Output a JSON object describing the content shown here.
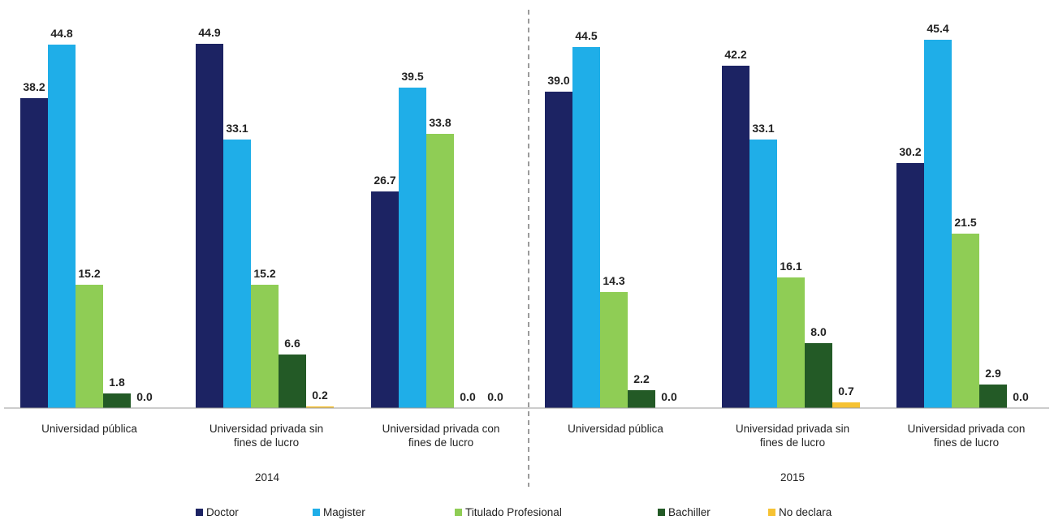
{
  "chart_data": {
    "type": "bar",
    "title": "",
    "xlabel": "",
    "ylabel": "",
    "ylim": [
      0,
      50
    ],
    "grid": false,
    "legend_position": "bottom",
    "groups": [
      {
        "year": "2014",
        "categories": [
          [
            "Universidad pública"
          ],
          [
            "Universidad privada sin",
            "fines de lucro"
          ],
          [
            "Universidad privada con",
            "fines de lucro"
          ]
        ]
      },
      {
        "year": "2015",
        "categories": [
          [
            "Universidad pública"
          ],
          [
            "Universidad privada sin",
            "fines de lucro"
          ],
          [
            "Universidad privada con",
            "fines de lucro"
          ]
        ]
      }
    ],
    "series": [
      {
        "name": "Doctor",
        "color": "#1c2363",
        "values": [
          38.2,
          44.9,
          26.7,
          39.0,
          42.2,
          30.2
        ]
      },
      {
        "name": "Magister",
        "color": "#1faee8",
        "values": [
          44.8,
          33.1,
          39.5,
          44.5,
          33.1,
          45.4
        ]
      },
      {
        "name": "Titulado Profesional",
        "color": "#8fcd55",
        "values": [
          15.2,
          15.2,
          33.8,
          14.3,
          16.1,
          21.5
        ]
      },
      {
        "name": "Bachiller",
        "color": "#235a26",
        "values": [
          1.8,
          6.6,
          0.0,
          2.2,
          8.0,
          2.9
        ]
      },
      {
        "name": "No declara",
        "color": "#f6c233",
        "values": [
          0.0,
          0.2,
          0.0,
          0.0,
          0.7,
          0.0
        ]
      }
    ],
    "value_labels": [
      [
        "38.2",
        "44.9",
        "26.7",
        "39.0",
        "42.2",
        "30.2"
      ],
      [
        "44.8",
        "33.1",
        "39.5",
        "44.5",
        "33.1",
        "45.4"
      ],
      [
        "15.2",
        "15.2",
        "33.8",
        "14.3",
        "16.1",
        "21.5"
      ],
      [
        "1.8",
        "6.6",
        "0.0",
        "2.2",
        "8.0",
        "2.9"
      ],
      [
        "0.0",
        "0.2",
        "0.0",
        "0.0",
        "0.7",
        "0.0"
      ]
    ]
  }
}
